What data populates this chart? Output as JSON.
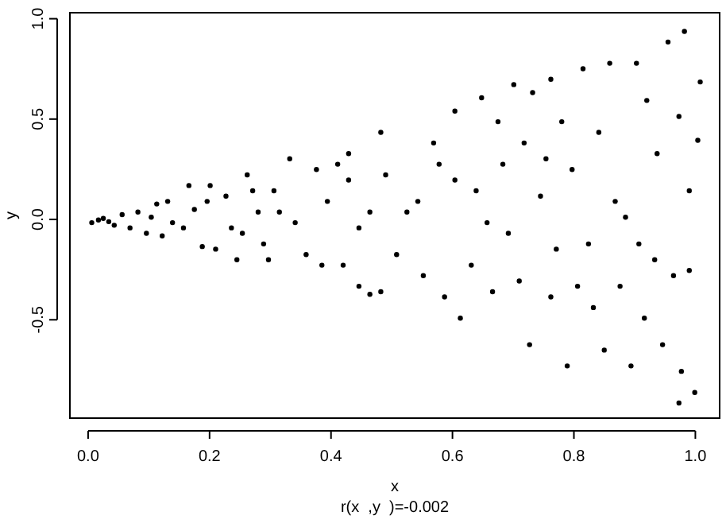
{
  "chart_data": {
    "type": "scatter",
    "xlabel": "x",
    "ylabel": "y",
    "annotations": [
      "r(x  ,y  )=-0.002"
    ],
    "xlim": [
      -0.03,
      1.04
    ],
    "ylim": [
      -0.99,
      1.03
    ],
    "xticks": [
      {
        "value": 0,
        "label": "0.0"
      },
      {
        "value": 0.2,
        "label": "0.2"
      },
      {
        "value": 0.4,
        "label": "0.4"
      },
      {
        "value": 0.6,
        "label": "0.6"
      },
      {
        "value": 0.8,
        "label": "0.8"
      },
      {
        "value": 1,
        "label": "1.0"
      }
    ],
    "yticks": [
      {
        "value": -0.5,
        "label": "-0.5"
      },
      {
        "value": 0,
        "label": "0.0"
      },
      {
        "value": 0.5,
        "label": "0.5"
      },
      {
        "value": 1,
        "label": "1.0"
      }
    ],
    "grid": false,
    "marker": "circle",
    "series": [
      {
        "color": "#000000",
        "x": [
          0.006,
          0.017,
          0.025,
          0.034,
          0.043,
          0.056,
          0.069,
          0.082,
          0.096,
          0.104,
          0.113,
          0.122,
          0.131,
          0.139,
          0.157,
          0.166,
          0.175,
          0.188,
          0.196,
          0.201,
          0.21,
          0.227,
          0.236,
          0.245,
          0.254,
          0.262,
          0.271,
          0.28,
          0.289,
          0.297,
          0.306,
          0.315,
          0.332,
          0.341,
          0.359,
          0.376,
          0.385,
          0.394,
          0.411,
          0.42,
          0.429,
          0.446,
          0.464,
          0.482,
          0.482,
          0.429,
          0.446,
          0.464,
          0.49,
          0.508,
          0.525,
          0.543,
          0.552,
          0.569,
          0.578,
          0.587,
          0.604,
          0.604,
          0.613,
          0.631,
          0.639,
          0.648,
          0.657,
          0.666,
          0.675,
          0.683,
          0.692,
          0.701,
          0.71,
          0.718,
          0.727,
          0.732,
          0.745,
          0.754,
          0.762,
          0.762,
          0.771,
          0.78,
          0.789,
          0.797,
          0.806,
          0.815,
          0.824,
          0.832,
          0.841,
          0.85,
          0.859,
          0.868,
          0.876,
          0.885,
          0.894,
          0.903,
          0.907,
          0.916,
          0.92,
          0.933,
          0.937,
          0.946,
          0.955,
          0.964,
          0.973,
          0.977,
          0.982,
          0.99,
          0.999,
          1.004,
          1.008,
          0.99,
          0.973
        ],
        "values": [
          -0.016,
          -0.003,
          0.005,
          -0.011,
          -0.029,
          0.024,
          -0.042,
          0.037,
          -0.069,
          0.011,
          0.077,
          -0.082,
          0.09,
          -0.016,
          -0.042,
          0.169,
          0.05,
          -0.135,
          0.09,
          0.169,
          -0.148,
          0.116,
          -0.042,
          -0.201,
          -0.069,
          0.222,
          0.143,
          0.037,
          -0.122,
          -0.201,
          0.143,
          0.037,
          0.302,
          -0.016,
          -0.175,
          0.249,
          -0.228,
          0.09,
          0.275,
          -0.228,
          0.196,
          -0.333,
          0.037,
          0.434,
          -0.36,
          0.328,
          -0.042,
          -0.373,
          0.222,
          -0.175,
          0.037,
          0.09,
          -0.28,
          0.381,
          0.275,
          -0.386,
          0.196,
          0.54,
          -0.492,
          -0.228,
          0.143,
          0.606,
          -0.016,
          -0.36,
          0.487,
          0.275,
          -0.069,
          0.672,
          -0.307,
          0.381,
          -0.624,
          0.632,
          0.116,
          0.302,
          0.698,
          -0.386,
          -0.148,
          0.487,
          -0.73,
          0.249,
          -0.333,
          0.751,
          -0.122,
          -0.439,
          0.434,
          -0.651,
          0.778,
          0.09,
          -0.333,
          0.011,
          -0.73,
          0.778,
          -0.122,
          -0.492,
          0.593,
          -0.201,
          0.328,
          -0.624,
          0.884,
          -0.28,
          0.513,
          -0.757,
          0.937,
          0.143,
          -0.862,
          0.394,
          0.685,
          -0.254,
          -0.915
        ]
      }
    ]
  }
}
